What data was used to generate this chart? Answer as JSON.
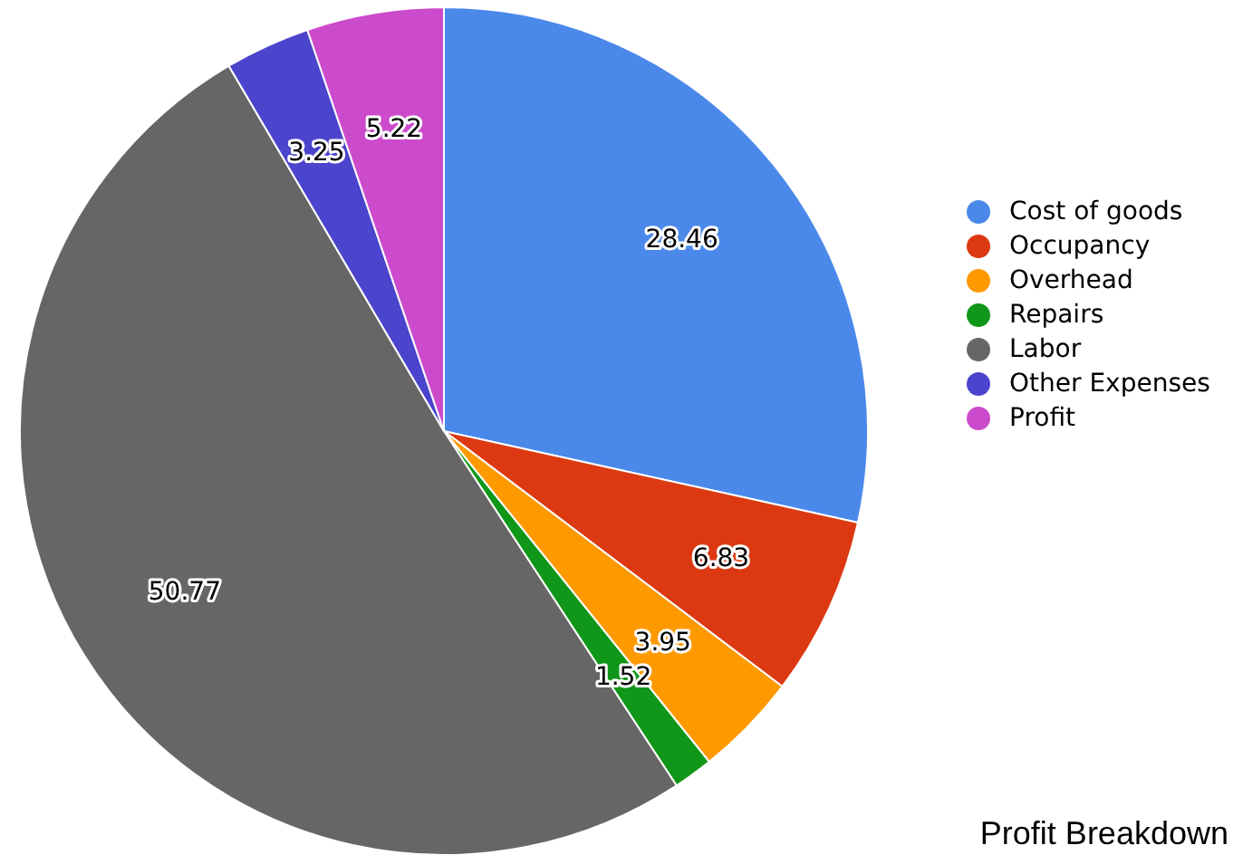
{
  "chart_data": {
    "type": "pie",
    "title": "Profit Breakdown",
    "categories": [
      "Cost of goods",
      "Occupancy",
      "Overhead",
      "Repairs",
      "Labor",
      "Other Expenses",
      "Profit"
    ],
    "values": [
      28.46,
      6.83,
      3.95,
      1.52,
      50.77,
      3.25,
      5.22
    ],
    "colors": [
      "#4a89ea",
      "#dc3912",
      "#ff9900",
      "#109618",
      "#666666",
      "#4b44cc",
      "#cc4bcc"
    ],
    "data_labels": true,
    "legend": "right"
  }
}
